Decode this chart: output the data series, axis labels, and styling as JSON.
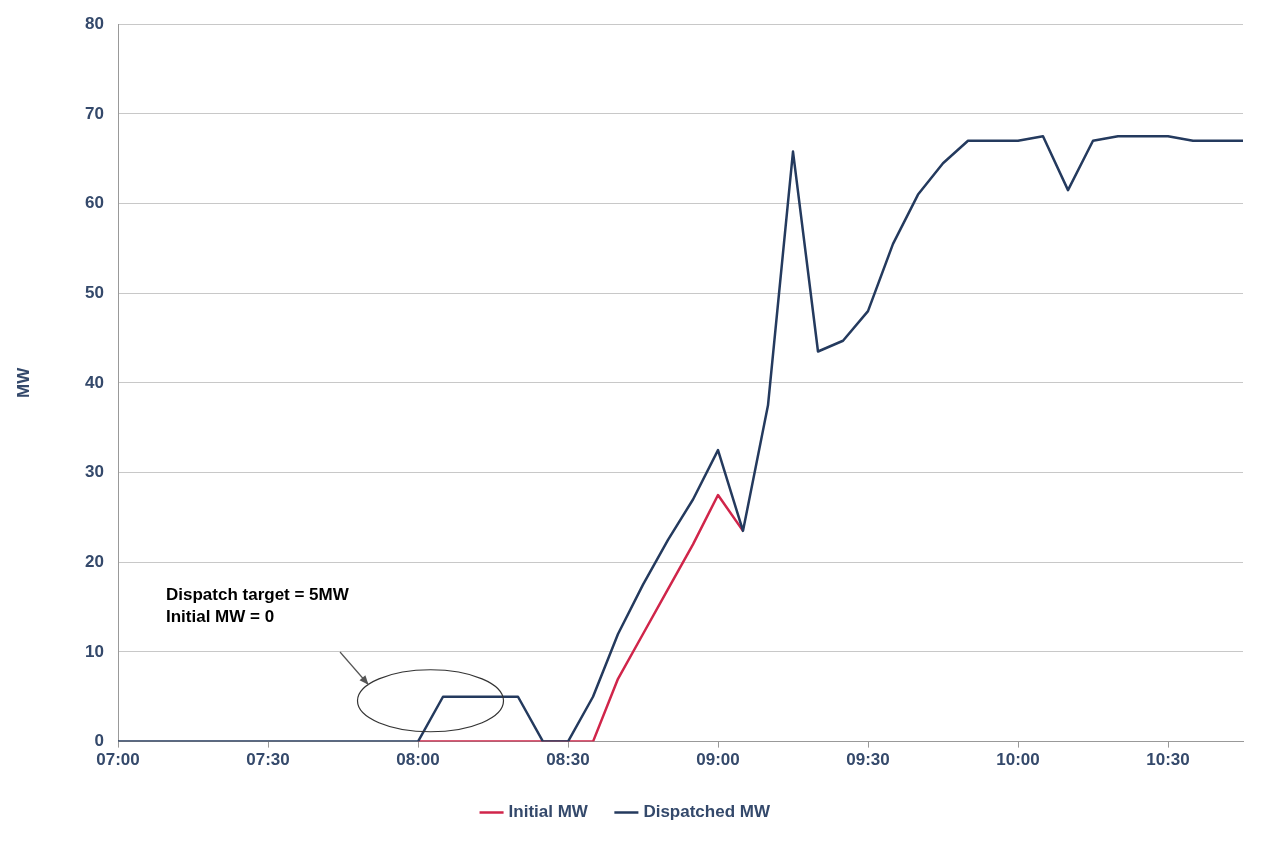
{
  "chart_data": {
    "type": "line",
    "ylabel": "MW",
    "categories": [
      "07:00",
      null,
      null,
      null,
      null,
      null,
      "07:30",
      null,
      null,
      null,
      null,
      null,
      "08:00",
      null,
      null,
      null,
      null,
      null,
      "08:30",
      null,
      null,
      null,
      null,
      null,
      "09:00",
      null,
      null,
      null,
      null,
      null,
      "09:30",
      null,
      null,
      null,
      null,
      null,
      "10:00",
      null,
      null,
      null,
      null,
      null,
      "10:30",
      null,
      null,
      null
    ],
    "series": [
      {
        "name": "Initial MW",
        "color": "#d0254a",
        "values": [
          null,
          null,
          null,
          null,
          null,
          null,
          null,
          null,
          null,
          null,
          null,
          null,
          0,
          0,
          0,
          0,
          0,
          0,
          0,
          0,
          7,
          12,
          17,
          22,
          27.5,
          23.5,
          null,
          null,
          null,
          null,
          null,
          null,
          null,
          null,
          null,
          null,
          null,
          null,
          null,
          null,
          null,
          null,
          null,
          null,
          null,
          null
        ]
      },
      {
        "name": "Dispatched MW",
        "color": "#243a5e",
        "values": [
          0,
          0,
          0,
          0,
          0,
          0,
          0,
          0,
          0,
          0,
          0,
          0,
          0,
          5,
          5,
          5,
          5,
          0,
          0,
          5,
          12,
          17.5,
          22.5,
          27,
          32.5,
          23.5,
          37.5,
          65.8,
          43.5,
          44.7,
          48,
          55.5,
          61,
          64.5,
          67,
          67,
          67,
          67.5,
          61.5,
          67,
          67.5,
          67.5,
          67.5,
          67,
          67,
          67
        ]
      }
    ],
    "ylim": [
      0,
      80
    ],
    "yticks": [
      0,
      10,
      20,
      30,
      40,
      50,
      60,
      70,
      80
    ],
    "grid": "y",
    "legend": "bottom",
    "line_style": "solid",
    "marker": "none",
    "annotations": [
      "Dispatch target = 5MW",
      "Initial MW = 0"
    ]
  }
}
